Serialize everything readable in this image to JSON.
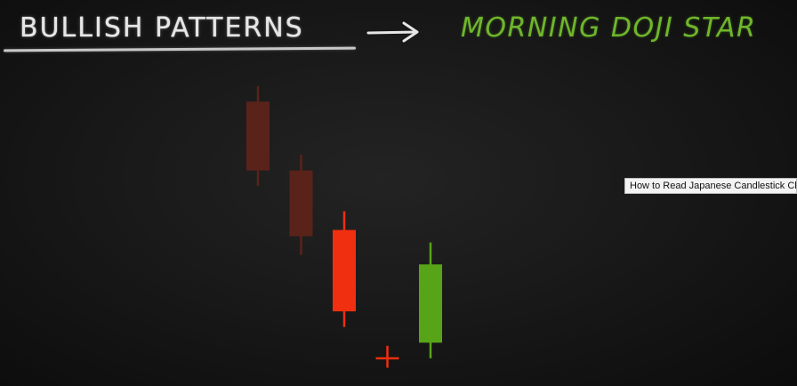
{
  "video": {
    "title_left": "BULLISH  PATTERNS",
    "title_right": "MORNING DOJI STAR",
    "tooltip": "How to Read Japanese Candlestick Charts"
  },
  "colors": {
    "background": "#161616",
    "chalk_white": "#e6e6e6",
    "accent_green": "#6fb62b",
    "bearish_red": "#ef2f0f",
    "bearish_faded": "#5a2319",
    "bullish_green": "#58a418"
  },
  "icons": {
    "arrow": "right-arrow-icon"
  },
  "chart_data": {
    "type": "candlestick",
    "title": "MORNING DOJI STAR",
    "xlabel": "",
    "ylabel": "",
    "ylim": [
      0,
      100
    ],
    "grid": false,
    "candles": [
      {
        "direction": "bearish",
        "open": 88,
        "close": 66,
        "high": 93,
        "low": 61,
        "faded": true
      },
      {
        "direction": "bearish",
        "open": 66,
        "close": 45,
        "high": 71,
        "low": 39,
        "faded": true
      },
      {
        "direction": "bearish",
        "open": 47,
        "close": 21,
        "high": 53,
        "low": 16,
        "faded": false
      },
      {
        "direction": "doji",
        "open": 6,
        "close": 6,
        "high": 10,
        "low": 3,
        "faded": false
      },
      {
        "direction": "bullish",
        "open": 11,
        "close": 36,
        "high": 43,
        "low": 6,
        "faded": false
      }
    ]
  }
}
